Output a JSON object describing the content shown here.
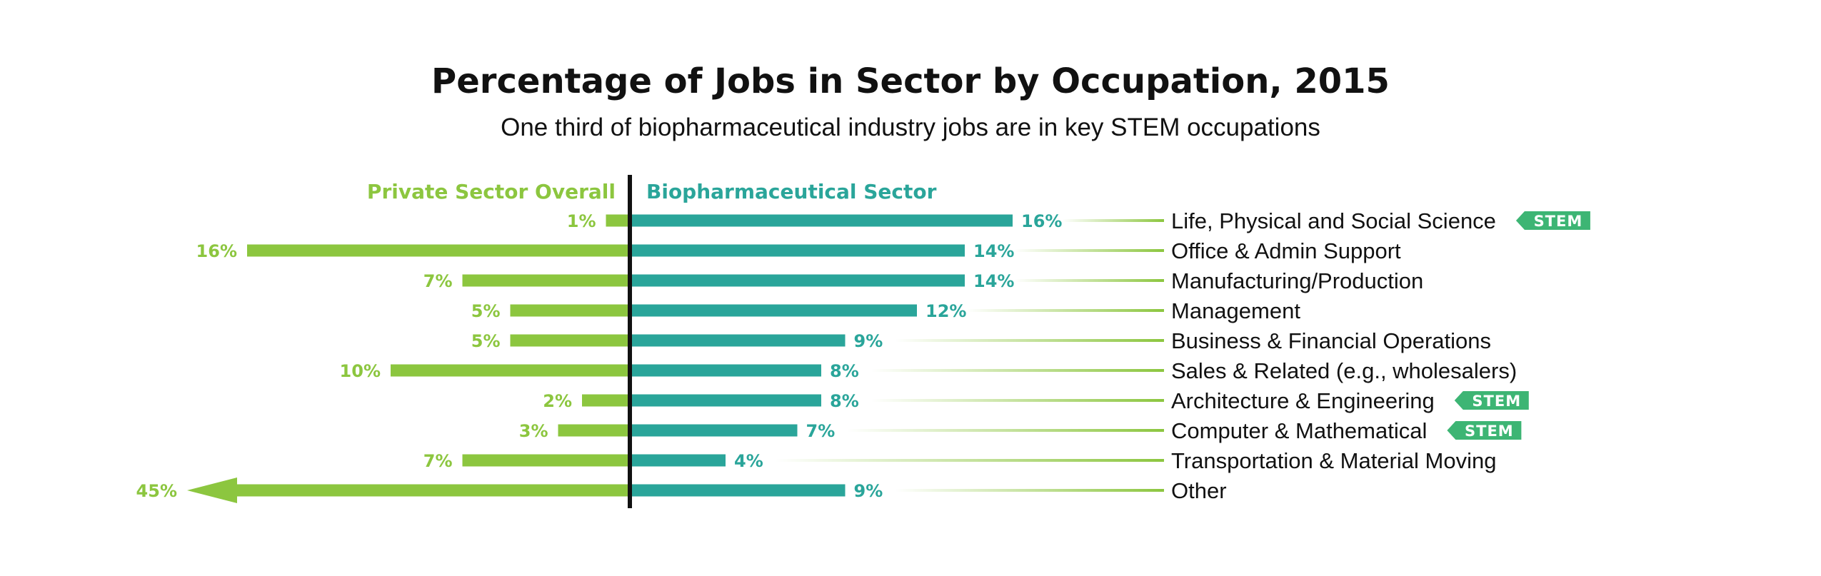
{
  "chart_data": {
    "type": "bar",
    "title": "Percentage of Jobs in Sector by Occupation, 2015",
    "subtitle": "One third of biopharmaceutical industry jobs are in key STEM occupations",
    "categories": [
      "Life, Physical and Social Science",
      "Office & Admin Support",
      "Manufacturing/Production",
      "Management",
      "Business & Financial Operations",
      "Sales & Related (e.g., wholesalers)",
      "Architecture & Engineering",
      "Computer & Mathematical",
      "Transportation & Material Moving",
      "Other"
    ],
    "series": [
      {
        "name": "Private Sector Overall",
        "color": "#8cc63f",
        "direction": "left",
        "values": [
          1,
          16,
          7,
          5,
          5,
          10,
          2,
          3,
          7,
          45
        ],
        "labels": [
          "1%",
          "16%",
          "7%",
          "5%",
          "5%",
          "10%",
          "2%",
          "3%",
          "7%",
          "45%"
        ]
      },
      {
        "name": "Biopharmaceutical Sector",
        "color": "#2aa59a",
        "direction": "right",
        "values": [
          16,
          14,
          14,
          12,
          9,
          8,
          8,
          7,
          4,
          9
        ],
        "labels": [
          "16%",
          "14%",
          "14%",
          "12%",
          "9%",
          "8%",
          "8%",
          "7%",
          "4%",
          "9%"
        ]
      }
    ],
    "badges": [
      {
        "category": "Life, Physical and Social Science",
        "text": "STEM"
      },
      {
        "category": "Architecture & Engineering",
        "text": "STEM"
      },
      {
        "category": "Computer & Mathematical",
        "text": "STEM"
      }
    ],
    "truncated_bar_note": {
      "category": "Other",
      "series": "Private Sector Overall",
      "style": "arrow"
    },
    "badge_color": "#3db574",
    "divider_color": "#111111",
    "grid": false
  }
}
